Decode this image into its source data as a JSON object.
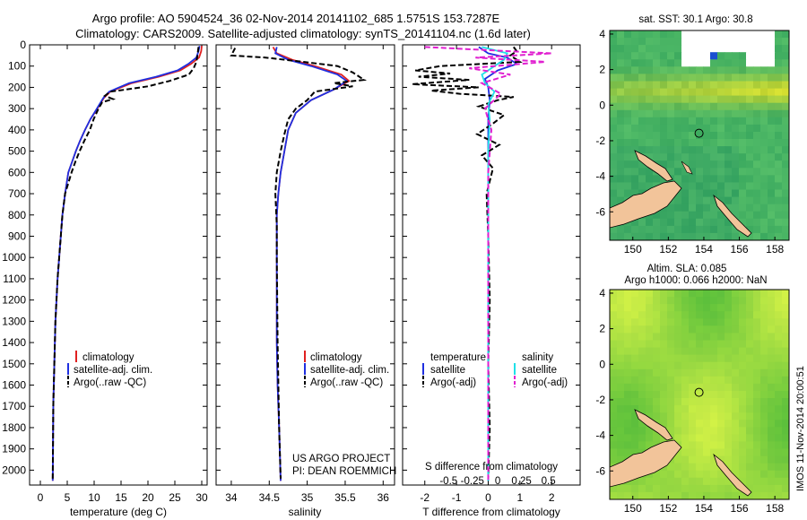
{
  "header": {
    "title_line1": "Argo profile: AO 5904524_36 02-Nov-2014 20141102_685 1.5751S 153.7287E",
    "title_line2": "Climatology: CARS2009. Satellite-adjusted climatology: synTS_20141104.nc (1.6d later)"
  },
  "footer_stamp": "IMOS 11-Nov-2014 20:00:51",
  "credits": {
    "line1": "US ARGO PROJECT",
    "line2": "PI: DEAN ROEMMICH"
  },
  "colors": {
    "climatology": "#e02020",
    "satellite": "#1f2fe0",
    "argo": "#000000",
    "s_satellite": "#20e0e8",
    "s_argo": "#e020d0",
    "land": "#f2c49a"
  },
  "chart_data": [
    {
      "id": "temperature-panel",
      "type": "line",
      "xlabel": "temperature (deg C)",
      "ylabel": "",
      "xlim": [
        -2,
        31
      ],
      "ylim": [
        2070,
        0
      ],
      "xticks": [
        0,
        5,
        10,
        15,
        20,
        25,
        30
      ],
      "yticks": [
        0,
        100,
        200,
        300,
        400,
        500,
        600,
        700,
        800,
        900,
        1000,
        1100,
        1200,
        1300,
        1400,
        1500,
        1600,
        1700,
        1800,
        1900,
        2000
      ],
      "legend": [
        "climatology",
        "satellite-adj. clim.",
        "Argo(..raw -QC)"
      ],
      "series": [
        {
          "name": "climatology",
          "style": "solid",
          "color": "#e02020",
          "x": [
            30,
            29.9,
            29.5,
            28,
            26,
            22,
            17,
            13,
            11.8,
            10.6,
            9.3,
            8.3,
            7.4,
            6.6,
            5.9,
            5.2,
            4.6,
            4.1,
            3.8,
            3.5,
            3.2,
            3.0,
            2.8,
            2.7,
            2.6,
            2.5,
            2.4,
            2.35,
            2.3
          ],
          "y": [
            5,
            30,
            60,
            90,
            120,
            150,
            180,
            220,
            250,
            300,
            350,
            400,
            450,
            500,
            550,
            600,
            700,
            800,
            900,
            1000,
            1100,
            1200,
            1300,
            1400,
            1500,
            1600,
            1700,
            1900,
            2050
          ]
        },
        {
          "name": "satellite-adj. clim.",
          "style": "solid",
          "color": "#1f2fe0",
          "x": [
            29.6,
            29.4,
            29,
            27.5,
            25.5,
            21.5,
            16.5,
            12.8,
            11.7,
            10.5,
            9.3,
            8.3,
            7.4,
            6.6,
            5.9,
            5.2,
            4.6,
            4.1,
            3.8,
            3.5,
            3.2,
            3.0,
            2.8,
            2.7,
            2.6,
            2.5,
            2.4,
            2.35,
            2.3
          ],
          "y": [
            5,
            30,
            60,
            90,
            120,
            150,
            180,
            220,
            250,
            300,
            350,
            400,
            450,
            500,
            550,
            600,
            700,
            800,
            900,
            1000,
            1100,
            1200,
            1300,
            1400,
            1500,
            1600,
            1700,
            1900,
            2050
          ]
        },
        {
          "name": "Argo(..raw -QC)",
          "style": "dashed",
          "color": "#000000",
          "x": [
            29.4,
            29.3,
            29.2,
            29.0,
            28.5,
            27.6,
            24,
            20,
            16,
            13,
            12,
            13.5,
            11.5,
            10.8,
            9.9,
            9.2,
            8.2,
            7.3,
            6.5,
            5.8,
            5.2,
            4.6,
            4.1,
            3.8,
            3.5,
            3.2,
            3.0,
            2.8,
            2.6,
            2.5,
            2.4,
            2.35,
            2.3
          ],
          "y": [
            10,
            30,
            50,
            80,
            110,
            140,
            170,
            195,
            210,
            220,
            240,
            255,
            270,
            300,
            350,
            400,
            450,
            500,
            550,
            600,
            650,
            700,
            800,
            900,
            1000,
            1100,
            1200,
            1300,
            1500,
            1600,
            1700,
            1900,
            2040
          ]
        }
      ]
    },
    {
      "id": "salinity-panel",
      "type": "line",
      "xlabel": "salinity",
      "xlim": [
        33.8,
        36.15
      ],
      "ylim": [
        2070,
        0
      ],
      "xticks": [
        34,
        34.5,
        35,
        35.5,
        36
      ],
      "legend": [
        "climatology",
        "satellite-adj. clim.",
        "Argo(..raw -QC)"
      ],
      "series": [
        {
          "name": "climatology",
          "style": "solid",
          "color": "#e02020",
          "x": [
            34.55,
            34.6,
            34.8,
            35.1,
            35.45,
            35.55,
            35.35,
            35.05,
            34.85,
            34.75,
            34.7,
            34.65,
            34.62,
            34.6,
            34.6,
            34.6,
            34.6,
            34.61,
            34.63,
            34.65
          ],
          "y": [
            10,
            40,
            70,
            100,
            140,
            170,
            210,
            260,
            320,
            400,
            500,
            600,
            700,
            800,
            1000,
            1200,
            1400,
            1600,
            1800,
            2050
          ]
        },
        {
          "name": "satellite-adj. clim.",
          "style": "solid",
          "color": "#1f2fe0",
          "x": [
            34.6,
            34.58,
            34.75,
            35.05,
            35.4,
            35.52,
            35.35,
            35.05,
            34.85,
            34.75,
            34.7,
            34.65,
            34.62,
            34.6,
            34.6,
            34.6,
            34.6,
            34.61,
            34.63,
            34.65
          ],
          "y": [
            10,
            40,
            70,
            100,
            140,
            170,
            210,
            260,
            320,
            400,
            500,
            600,
            700,
            800,
            1000,
            1200,
            1400,
            1600,
            1800,
            2050
          ]
        },
        {
          "name": "Argo(..raw -QC)",
          "style": "dashed",
          "color": "#000000",
          "x": [
            34.05,
            34.0,
            34.45,
            34.95,
            35.4,
            35.6,
            35.75,
            35.35,
            35.6,
            35.1,
            35.0,
            34.85,
            34.75,
            34.7,
            34.65,
            34.6,
            34.58,
            34.6,
            34.6,
            34.61,
            34.63,
            34.65
          ],
          "y": [
            15,
            50,
            60,
            80,
            100,
            130,
            165,
            180,
            195,
            220,
            260,
            300,
            350,
            420,
            500,
            600,
            700,
            850,
            1000,
            1400,
            1800,
            2040
          ]
        }
      ]
    },
    {
      "id": "difference-panel",
      "type": "line",
      "xlabel": "T difference from climatology",
      "xlabel_top": "S difference from climatology",
      "xlim": [
        -2.7,
        2.9
      ],
      "ylim": [
        2070,
        0
      ],
      "xticks": [
        -2,
        -1,
        0,
        1,
        2
      ],
      "xticks_top": [
        "-0.5",
        "-0.25",
        "0",
        "0.25",
        "0.5"
      ],
      "legend_temperature": [
        "temperature",
        "satellite",
        "Argo(-adj)"
      ],
      "legend_salinity": [
        "salinity",
        "satellite",
        "Argo(-adj)"
      ],
      "series": [
        {
          "name": "T satellite",
          "style": "solid",
          "color": "#1f2fe0",
          "x": [
            -0.3,
            0,
            0.6,
            0.9,
            0.3,
            -0.1,
            0,
            0.05,
            0,
            0,
            0,
            0,
            0,
            0
          ],
          "y": [
            10,
            40,
            60,
            90,
            120,
            160,
            200,
            260,
            350,
            500,
            800,
            1200,
            1600,
            2050
          ]
        },
        {
          "name": "T Argo(-adj)",
          "style": "dashed",
          "color": "#000000",
          "x": [
            0.8,
            0.9,
            0.7,
            1.0,
            -1.5,
            -2.3,
            -1.2,
            -2.2,
            -0.6,
            -2.4,
            -0.3,
            -1.8,
            -0.9,
            0.8,
            0.3,
            -0.3,
            0.5,
            0.15,
            -0.35,
            0.35,
            -0.2,
            0.15,
            -0.05,
            0,
            0.05,
            0,
            0.05,
            0
          ],
          "y": [
            10,
            30,
            50,
            80,
            100,
            120,
            135,
            150,
            165,
            185,
            200,
            215,
            230,
            245,
            260,
            290,
            330,
            370,
            420,
            470,
            520,
            580,
            700,
            900,
            1200,
            1500,
            1800,
            2040
          ]
        },
        {
          "name": "S satellite",
          "style": "solid",
          "color": "#20e0e8",
          "x": [
            -0.2,
            0.6,
            0.5,
            0.2,
            -0.2,
            -0.1,
            0.2,
            0,
            0.05,
            0,
            0,
            0,
            0,
            0
          ],
          "y": [
            10,
            40,
            70,
            100,
            140,
            180,
            220,
            280,
            350,
            500,
            800,
            1200,
            1600,
            2050
          ]
        },
        {
          "name": "S Argo(-adj)",
          "style": "dashed",
          "color": "#e020d0",
          "x": [
            -2.0,
            -0.7,
            2.0,
            -0.4,
            1.8,
            -0.6,
            0.7,
            -0.2,
            0.4,
            -0.1,
            0.1,
            0,
            0,
            0
          ],
          "y": [
            10,
            20,
            40,
            60,
            80,
            110,
            140,
            180,
            230,
            300,
            400,
            600,
            1000,
            2050
          ]
        }
      ]
    },
    {
      "id": "sst-map",
      "type": "heatmap",
      "title": "sat. SST: 30.1  Argo: 30.8",
      "xticks": [
        150,
        152,
        154,
        156,
        158
      ],
      "yticks": [
        4,
        2,
        0,
        -2,
        -4,
        -6
      ],
      "xlim": [
        148.7,
        158.8
      ],
      "ylim": [
        -7.6,
        4.2
      ],
      "marker": {
        "lon": 153.73,
        "lat": -1.58
      }
    },
    {
      "id": "sla-map",
      "type": "heatmap",
      "title_line1": "Altim. SLA: 0.085",
      "title_line2": "Argo h1000: 0.066  h2000: NaN",
      "xticks": [
        150,
        152,
        154,
        156,
        158
      ],
      "yticks": [
        4,
        2,
        0,
        -2,
        -4,
        -6
      ],
      "xlim": [
        148.7,
        158.8
      ],
      "ylim": [
        -7.6,
        4.2
      ],
      "marker": {
        "lon": 153.73,
        "lat": -1.58
      }
    }
  ]
}
